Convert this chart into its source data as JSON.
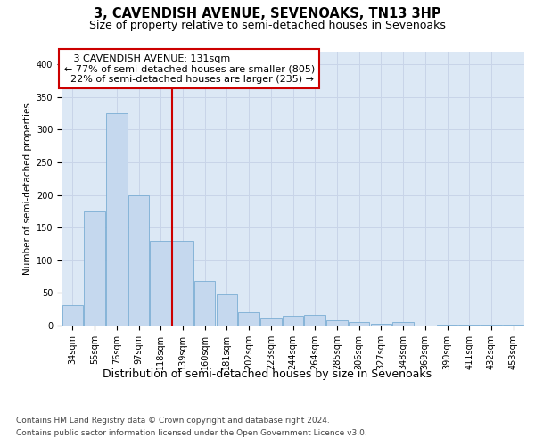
{
  "title": "3, CAVENDISH AVENUE, SEVENOAKS, TN13 3HP",
  "subtitle": "Size of property relative to semi-detached houses in Sevenoaks",
  "xlabel": "Distribution of semi-detached houses by size in Sevenoaks",
  "ylabel": "Number of semi-detached properties",
  "categories": [
    "34sqm",
    "55sqm",
    "76sqm",
    "97sqm",
    "118sqm",
    "139sqm",
    "160sqm",
    "181sqm",
    "202sqm",
    "223sqm",
    "244sqm",
    "264sqm",
    "285sqm",
    "306sqm",
    "327sqm",
    "348sqm",
    "369sqm",
    "390sqm",
    "411sqm",
    "432sqm",
    "453sqm"
  ],
  "values": [
    32,
    175,
    325,
    200,
    130,
    130,
    68,
    48,
    20,
    11,
    15,
    17,
    8,
    5,
    3,
    5,
    0,
    2,
    2,
    1,
    2
  ],
  "bar_color": "#c5d8ee",
  "bar_edge_color": "#7aadd4",
  "bar_edge_width": 0.6,
  "vline_index": 5,
  "vline_color": "#cc0000",
  "vline_label": "3 CAVENDISH AVENUE: 131sqm",
  "pct_smaller": "77%",
  "count_smaller": 805,
  "pct_larger": "22%",
  "count_larger": 235,
  "annotation_box_color": "#ffffff",
  "annotation_box_edge": "#cc0000",
  "ylim": [
    0,
    420
  ],
  "yticks": [
    0,
    50,
    100,
    150,
    200,
    250,
    300,
    350,
    400
  ],
  "grid_color": "#c8d4e8",
  "bg_color": "#dce8f5",
  "footer1": "Contains HM Land Registry data © Crown copyright and database right 2024.",
  "footer2": "Contains public sector information licensed under the Open Government Licence v3.0.",
  "title_fontsize": 10.5,
  "subtitle_fontsize": 9,
  "xlabel_fontsize": 9,
  "ylabel_fontsize": 7.5,
  "tick_fontsize": 7,
  "annot_fontsize": 8,
  "footer_fontsize": 6.5
}
